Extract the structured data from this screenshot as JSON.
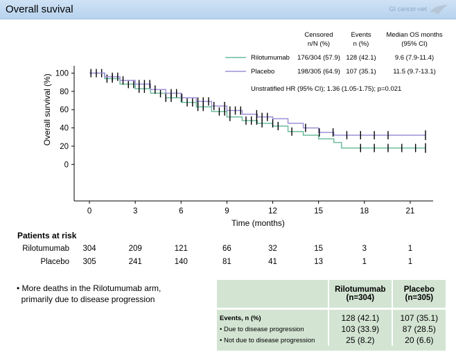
{
  "header": {
    "title": "Overall suvival",
    "brand": "GI cancer-net"
  },
  "legend": {
    "col_headers": [
      [
        "Censored",
        "n/N (%)"
      ],
      [
        "Events",
        "n (%)"
      ],
      [
        "Median OS months",
        "(95% CI)"
      ]
    ],
    "rows": [
      {
        "name": "Rilotumumab",
        "color": "#6dbb9b",
        "censored": "176/304 (57.9)",
        "events": "128 (42.1)",
        "median": "9.6 (7.9-11.4)"
      },
      {
        "name": "Placebo",
        "color": "#9d8fd6",
        "censored": "198/305 (64.9)",
        "events": "107 (35.1)",
        "median": "11.5 (9.7-13.1)"
      }
    ],
    "hr": "Unstratified HR (95% CI); 1.36 (1.05-1.75); p=0.021"
  },
  "chart_data": {
    "type": "line",
    "xlabel": "Time (months)",
    "ylabel": "Overall survival (%)",
    "xticks": [
      0,
      3,
      6,
      9,
      12,
      15,
      18,
      21
    ],
    "yticks": [
      0,
      20,
      40,
      60,
      80,
      100
    ],
    "xlim": [
      -1,
      22.5
    ],
    "ylim": [
      -40,
      108
    ],
    "series": [
      {
        "name": "Rilotumumab",
        "color": "#6dbb9b",
        "x": [
          0,
          1,
          2,
          3,
          4,
          5,
          6,
          7,
          8,
          9,
          10,
          11,
          12,
          13,
          14,
          15,
          16,
          16.5,
          17,
          22
        ],
        "y": [
          100,
          94,
          88,
          83,
          78,
          73,
          68,
          63,
          58,
          52,
          48,
          45,
          42,
          36,
          32,
          28,
          24,
          18,
          18,
          18
        ]
      },
      {
        "name": "Placebo",
        "color": "#9d8fd6",
        "x": [
          0,
          1,
          2,
          3,
          4,
          5,
          6,
          7,
          8,
          9,
          10,
          11,
          12,
          13,
          14,
          15,
          16,
          17,
          22
        ],
        "y": [
          100,
          96,
          92,
          88,
          82,
          78,
          73,
          69,
          64,
          59,
          55,
          52,
          50,
          45,
          40,
          35,
          32,
          32,
          32
        ]
      }
    ]
  },
  "risk": {
    "header": "Patients at risk",
    "rows": [
      {
        "label": "Rilotumumab",
        "values": [
          "304",
          "209",
          "121",
          "66",
          "32",
          "15",
          "3",
          "1"
        ]
      },
      {
        "label": "Placebo",
        "values": [
          "305",
          "241",
          "140",
          "81",
          "41",
          "13",
          "1",
          "1"
        ]
      }
    ]
  },
  "notes": {
    "bullet": [
      "• More deaths in the Rilotumumab arm,",
      "  primarily due to disease progression"
    ]
  },
  "table": {
    "headers": [
      [
        "Rilotumumab",
        "(n=304)"
      ],
      [
        "Placebo",
        "(n=305)"
      ]
    ],
    "rows": [
      {
        "label": "Events, n (%)",
        "v1": "128 (42.1)",
        "v2": "107 (35.1)"
      },
      {
        "label": "• Due to disease progression",
        "v1": "103 (33.9)",
        "v2": "87 (28.5)"
      },
      {
        "label": "• Not due to disease progression",
        "v1": "25 (8.2)",
        "v2": "20 (6.6)"
      }
    ]
  }
}
